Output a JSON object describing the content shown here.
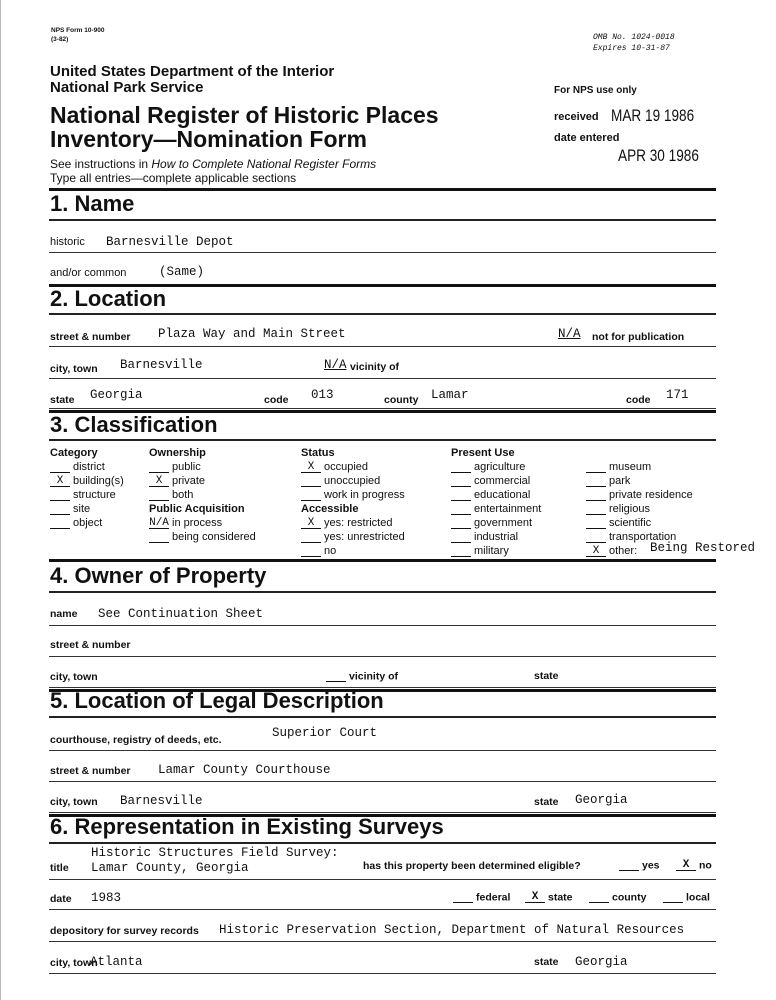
{
  "header": {
    "form_no": "NPS Form 10-900",
    "form_date": "(3-82)",
    "omb": "OMB No. 1024-0018",
    "expires": "Expires 10-31-87",
    "dept": "United States Department of the Interior",
    "service": "National Park Service",
    "title1": "National Register of Historic Places",
    "title2": "Inventory—Nomination Form",
    "instr_pre": "See instructions in ",
    "instr_it": "How to Complete National Register Forms",
    "instr2": "Type all entries—complete applicable sections",
    "nps_use": "For NPS use only",
    "received_label": "received",
    "received_value": "MAR 19 1986",
    "entered_label": "date entered",
    "entered_value": "APR 30 1986"
  },
  "s1": {
    "heading": "1. Name",
    "historic_label": "historic",
    "historic": "Barnesville Depot",
    "common_label": "and/or common",
    "common": "(Same)"
  },
  "s2": {
    "heading": "2. Location",
    "street_label": "street & number",
    "street": "Plaza Way and Main Street",
    "nfp_value": "N/A",
    "nfp_label": "not for publication",
    "city_label": "city, town",
    "city": "Barnesville",
    "vic_value": "N/A",
    "vic_label": "vicinity of",
    "state_label": "state",
    "state": "Georgia",
    "code_label": "code",
    "code": "013",
    "county_label": "county",
    "county": "Lamar",
    "code2_label": "code",
    "code2": "171"
  },
  "s3": {
    "heading": "3. Classification",
    "columns": [
      {
        "title": "Category",
        "items": [
          {
            "m": "",
            "t": "district"
          },
          {
            "m": "X",
            "t": "building(s)"
          },
          {
            "m": "",
            "t": "structure"
          },
          {
            "m": "",
            "t": "site"
          },
          {
            "m": "",
            "t": "object"
          }
        ]
      },
      {
        "title": "Ownership",
        "items": [
          {
            "m": "",
            "t": "public"
          },
          {
            "m": "X",
            "t": "private"
          },
          {
            "m": "",
            "t": "both"
          }
        ],
        "sub": "Public Acquisition",
        "items2": [
          {
            "m": "N/A",
            "t": "in process"
          },
          {
            "m": "",
            "t": "being considered"
          }
        ]
      },
      {
        "title": "Status",
        "items": [
          {
            "m": "X",
            "t": "occupied"
          },
          {
            "m": "",
            "t": "unoccupied"
          },
          {
            "m": "",
            "t": "work in progress"
          }
        ],
        "sub": "Accessible",
        "items2": [
          {
            "m": "X",
            "t": "yes: restricted"
          },
          {
            "m": "",
            "t": "yes: unrestricted"
          },
          {
            "m": "",
            "t": "no"
          }
        ]
      },
      {
        "title": "Present Use",
        "items": [
          {
            "m": "",
            "t": "agriculture"
          },
          {
            "m": "",
            "t": "commercial"
          },
          {
            "m": "",
            "t": "educational"
          },
          {
            "m": "",
            "t": "entertainment"
          },
          {
            "m": "",
            "t": "government"
          },
          {
            "m": "",
            "t": "industrial"
          },
          {
            "m": "",
            "t": "military"
          }
        ]
      },
      {
        "title": "",
        "items": [
          {
            "m": "",
            "t": "museum"
          },
          {
            "m": "",
            "t": "park"
          },
          {
            "m": "",
            "t": "private residence"
          },
          {
            "m": "",
            "t": "religious"
          },
          {
            "m": "",
            "t": "scientific"
          },
          {
            "m": "",
            "t": "transportation"
          },
          {
            "m": "X",
            "t": "other:"
          }
        ]
      }
    ],
    "other_value": "Being Restored"
  },
  "s4": {
    "heading": "4. Owner of Property",
    "name_label": "name",
    "name": "See Continuation Sheet",
    "street_label": "street & number",
    "city_label": "city, town",
    "vic_label": "vicinity of",
    "state_label": "state"
  },
  "s5": {
    "heading": "5. Location of Legal Description",
    "court_label": "courthouse, registry of deeds, etc.",
    "court": "Superior Court",
    "street_label": "street & number",
    "street": "Lamar County Courthouse",
    "city_label": "city, town",
    "city": "Barnesville",
    "state_label": "state",
    "state": "Georgia"
  },
  "s6": {
    "heading": "6. Representation in Existing Surveys",
    "title_label": "title",
    "title1": "Historic Structures Field Survey:",
    "title2": "Lamar County, Georgia",
    "elig_label": "has this property been determined eligible?",
    "yes_mark": "",
    "yes_label": "yes",
    "no_mark": "X",
    "no_label": "no",
    "date_label": "date",
    "date": "1983",
    "federal_label": "federal",
    "state_mark": "X",
    "state_label": "state",
    "county_label": "county",
    "local_label": "local",
    "dep_label": "depository for survey records",
    "dep": "Historic Preservation Section, Department of Natural Resources",
    "city_label": "city, town",
    "city": "Atlanta",
    "st_label": "state",
    "st": "Georgia"
  }
}
